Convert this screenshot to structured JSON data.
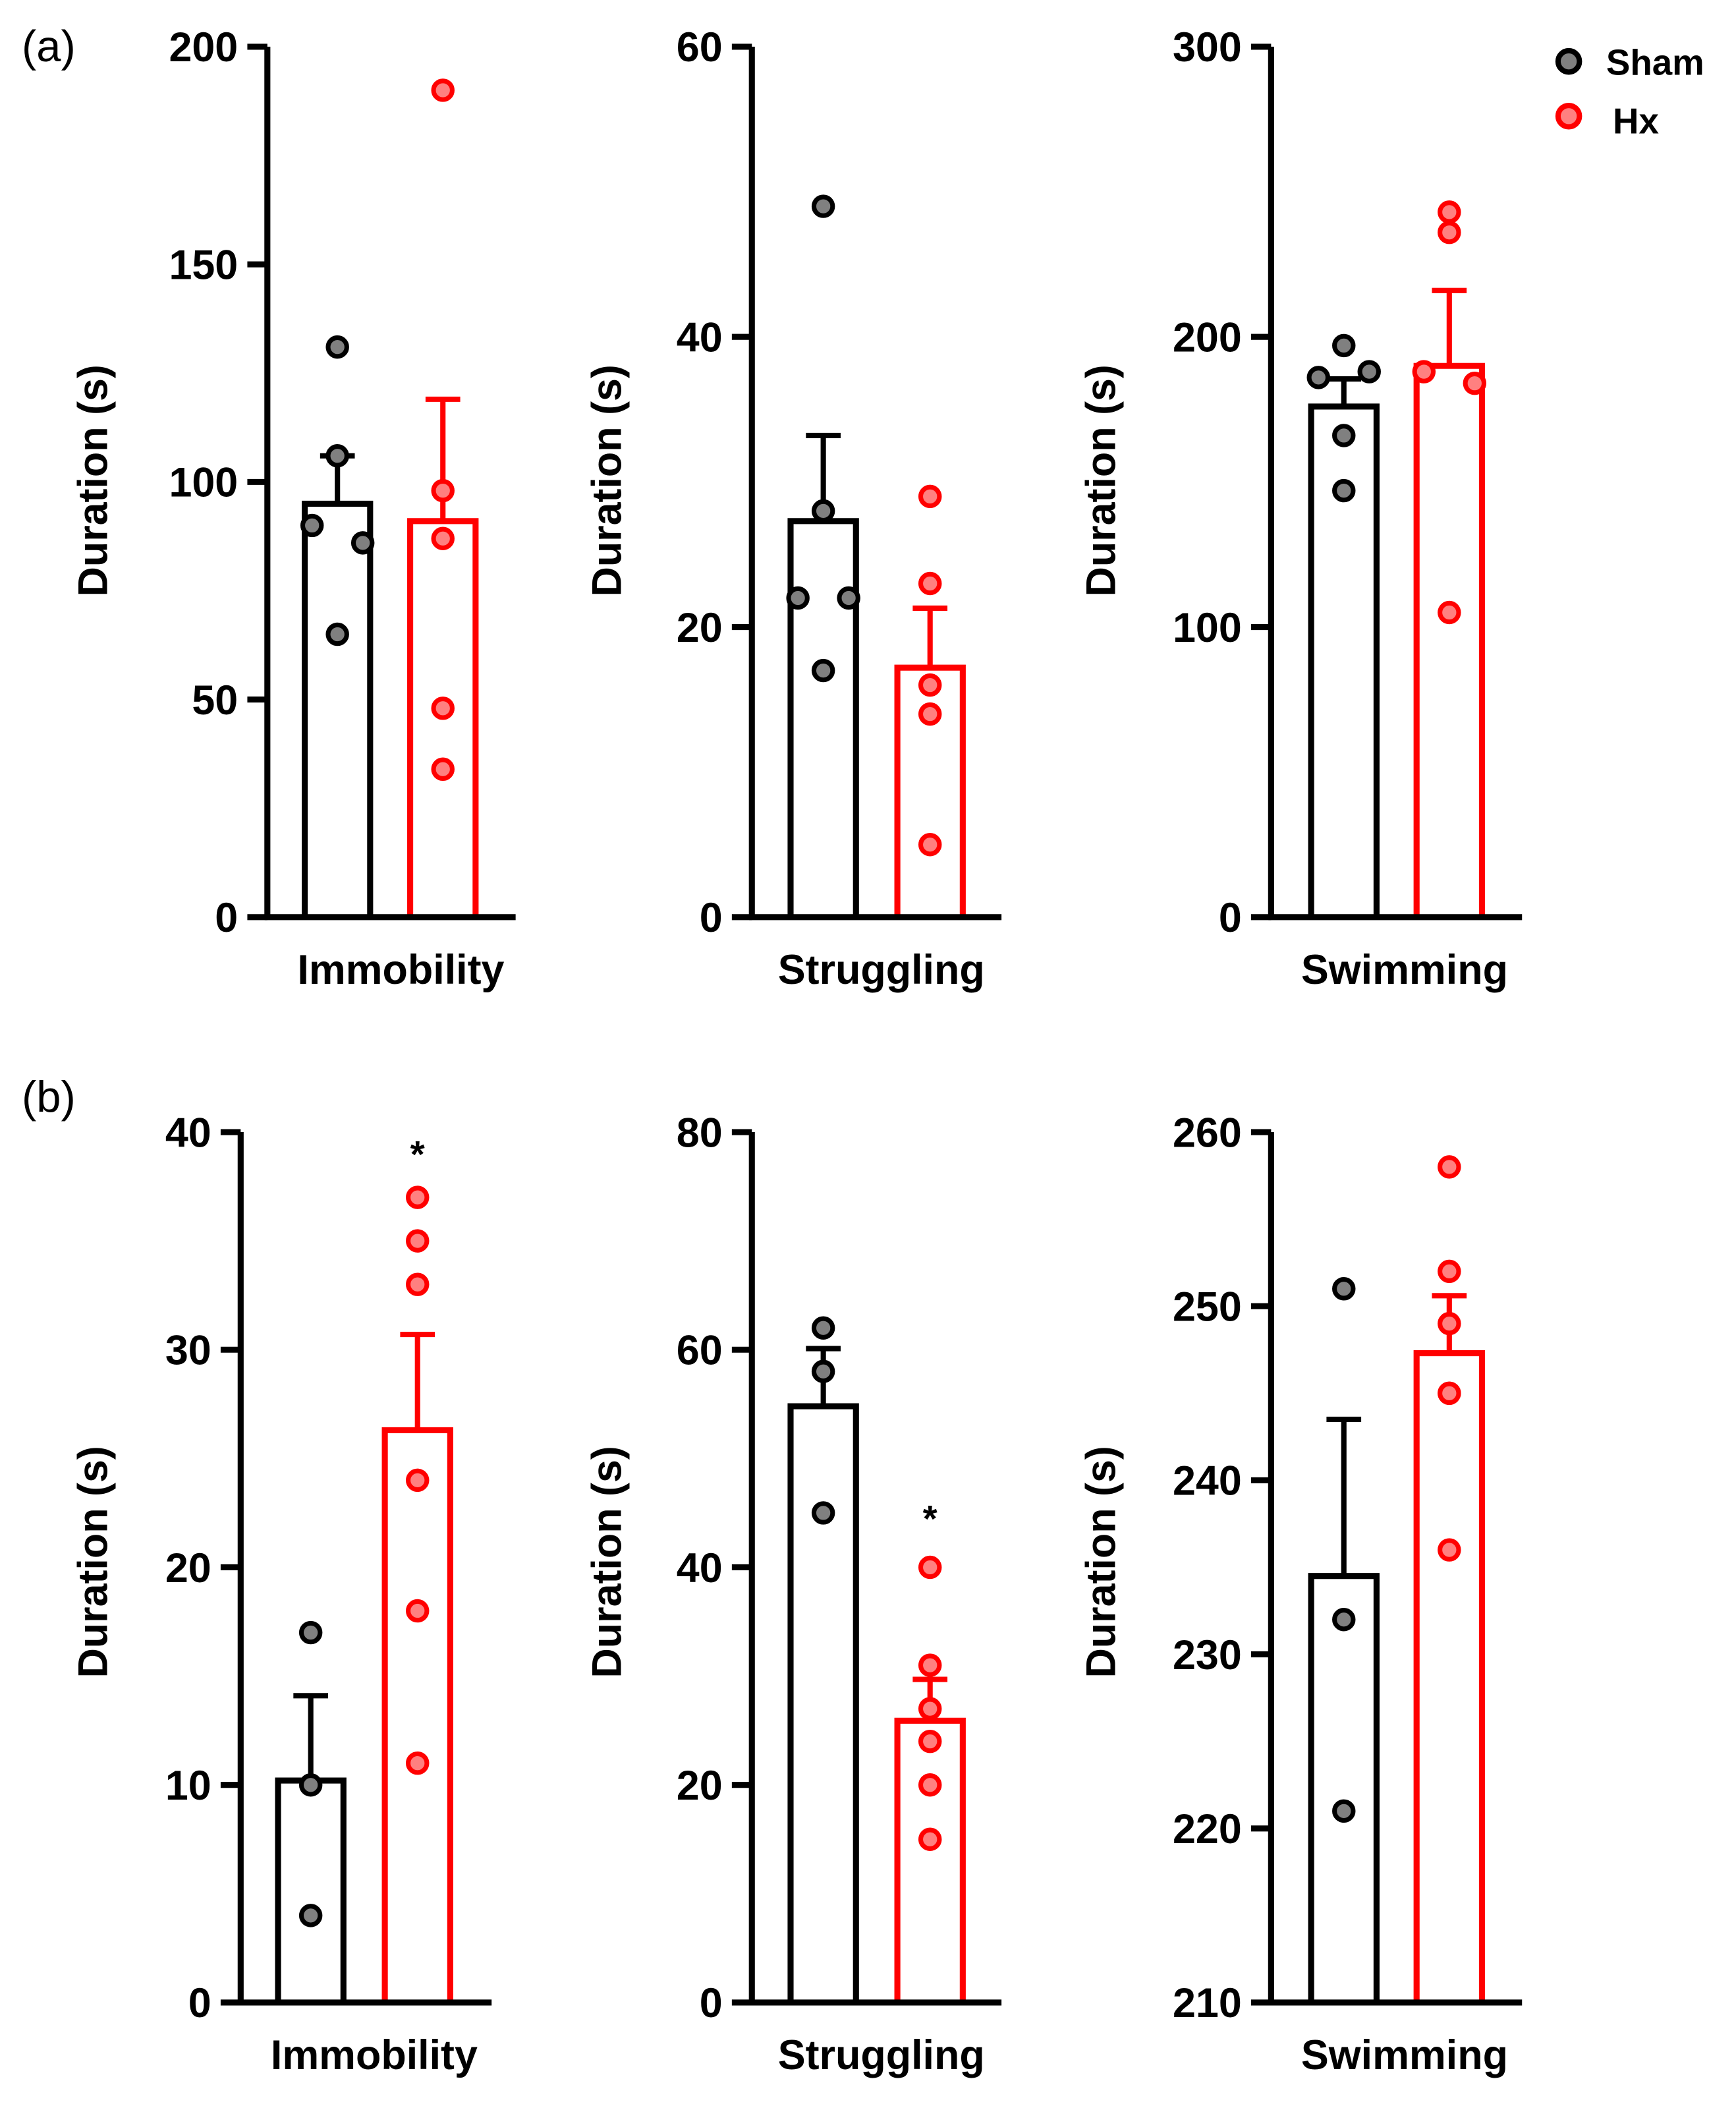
{
  "legend": {
    "items": [
      {
        "label": "Sham",
        "color": "#000000",
        "fill": "#808080"
      },
      {
        "label": "Hx",
        "color": "#ff0000",
        "fill": "#ff8080"
      }
    ],
    "placement": "top-right"
  },
  "panel_labels": [
    "(a)",
    "(b)"
  ],
  "chart_data": [
    {
      "type": "bar",
      "panel": "(a)",
      "title": "",
      "xlabel": "Immobility",
      "ylabel": "Duration (s)",
      "ylim": [
        0,
        200
      ],
      "yticks": [
        0,
        50,
        100,
        150,
        200
      ],
      "categories": [
        "Sham",
        "Hx"
      ],
      "series": [
        {
          "name": "Sham",
          "mean": 95,
          "sem_upper": 106,
          "points": [
            131,
            106,
            90,
            86,
            65
          ]
        },
        {
          "name": "Hx",
          "mean": 91,
          "sem_upper": 119,
          "points": [
            190,
            98,
            87,
            48,
            34
          ]
        }
      ],
      "annotations": []
    },
    {
      "type": "bar",
      "panel": "(a)",
      "title": "",
      "xlabel": "Struggling",
      "ylabel": "Duration (s)",
      "ylim": [
        0,
        60
      ],
      "yticks": [
        0,
        20,
        40,
        60
      ],
      "categories": [
        "Sham",
        "Hx"
      ],
      "series": [
        {
          "name": "Sham",
          "mean": 27.3,
          "sem_upper": 33.2,
          "points": [
            49,
            28,
            22,
            22,
            17
          ]
        },
        {
          "name": "Hx",
          "mean": 17.2,
          "sem_upper": 21.3,
          "points": [
            29,
            23,
            16,
            14,
            5
          ]
        }
      ],
      "annotations": []
    },
    {
      "type": "bar",
      "panel": "(a)",
      "title": "",
      "xlabel": "Swimming",
      "ylabel": "Duration (s)",
      "ylim": [
        0,
        300
      ],
      "yticks": [
        0,
        100,
        200,
        300
      ],
      "categories": [
        "Sham",
        "Hx"
      ],
      "series": [
        {
          "name": "Sham",
          "mean": 176,
          "sem_upper": 185.5,
          "points": [
            197,
            186,
            188,
            166,
            147
          ]
        },
        {
          "name": "Hx",
          "mean": 190,
          "sem_upper": 216,
          "points": [
            243,
            236,
            188,
            184,
            105
          ]
        }
      ],
      "annotations": []
    },
    {
      "type": "bar",
      "panel": "(b)",
      "title": "",
      "xlabel": "Immobility",
      "ylabel": "Duration (s)",
      "ylim": [
        0,
        40
      ],
      "yticks": [
        0,
        10,
        20,
        30,
        40
      ],
      "categories": [
        "Sham",
        "Hx"
      ],
      "series": [
        {
          "name": "Sham",
          "mean": 10.2,
          "sem_upper": 14.1,
          "points": [
            17,
            10,
            4
          ]
        },
        {
          "name": "Hx",
          "mean": 26.3,
          "sem_upper": 30.7,
          "points": [
            37,
            35,
            33,
            24,
            18,
            11
          ]
        }
      ],
      "annotations": [
        {
          "text": "*",
          "series": "Hx",
          "y": 39.5
        }
      ]
    },
    {
      "type": "bar",
      "panel": "(b)",
      "title": "",
      "xlabel": "Struggling",
      "ylabel": "Duration (s)",
      "ylim": [
        0,
        80
      ],
      "yticks": [
        0,
        20,
        40,
        60,
        80
      ],
      "categories": [
        "Sham",
        "Hx"
      ],
      "series": [
        {
          "name": "Sham",
          "mean": 54.8,
          "sem_upper": 60.1,
          "points": [
            62,
            58,
            45
          ]
        },
        {
          "name": "Hx",
          "mean": 25.9,
          "sem_upper": 29.7,
          "points": [
            40,
            31,
            27,
            24,
            20,
            15
          ]
        }
      ],
      "annotations": [
        {
          "text": "*",
          "series": "Hx",
          "y": 45.5
        }
      ]
    },
    {
      "type": "bar",
      "panel": "(b)",
      "title": "",
      "xlabel": "Swimming",
      "ylabel": "Duration (s)",
      "ylim": [
        210,
        260
      ],
      "yticks": [
        210,
        220,
        230,
        240,
        250,
        260
      ],
      "categories": [
        "Sham",
        "Hx"
      ],
      "series": [
        {
          "name": "Sham",
          "mean": 234.5,
          "sem_upper": 243.5,
          "points": [
            251,
            232,
            221
          ]
        },
        {
          "name": "Hx",
          "mean": 247.3,
          "sem_upper": 250.6,
          "points": [
            258,
            252,
            249,
            245,
            245,
            236
          ]
        }
      ],
      "annotations": []
    }
  ]
}
